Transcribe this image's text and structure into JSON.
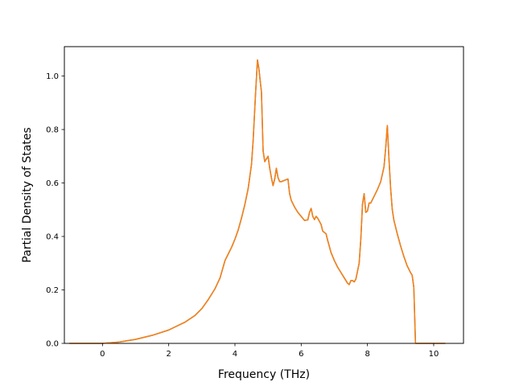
{
  "chart_data": {
    "type": "line",
    "title": "",
    "xlabel": "Frequency (THz)",
    "ylabel": "Partial Density of States",
    "xlim": [
      -1.15,
      10.9
    ],
    "ylim": [
      0.0,
      1.11
    ],
    "xticks": [
      0,
      2,
      4,
      6,
      8,
      10
    ],
    "xtick_labels": [
      "0",
      "2",
      "4",
      "6",
      "8",
      "10"
    ],
    "yticks": [
      0.0,
      0.2,
      0.4,
      0.6,
      0.8,
      1.0
    ],
    "ytick_labels": [
      "0.0",
      "0.2",
      "0.4",
      "0.6",
      "0.8",
      "1.0"
    ],
    "grid": false,
    "legend": "none",
    "colors": {
      "line_under": "#1f77b4",
      "line_over": "#ff7f0e",
      "axes": "#000000"
    },
    "series": [
      {
        "x": [
          -1.0,
          -0.5,
          0.0,
          0.5,
          1.0,
          1.5,
          2.0,
          2.5,
          2.8,
          3.0,
          3.2,
          3.4,
          3.55,
          3.7,
          3.8,
          3.9,
          4.0,
          4.1,
          4.2,
          4.3,
          4.4,
          4.5,
          4.55,
          4.62,
          4.68,
          4.72,
          4.8,
          4.85,
          4.9,
          5.0,
          5.05,
          5.1,
          5.15,
          5.2,
          5.25,
          5.3,
          5.35,
          5.4,
          5.5,
          5.6,
          5.65,
          5.7,
          5.8,
          5.9,
          6.0,
          6.1,
          6.2,
          6.25,
          6.3,
          6.35,
          6.4,
          6.45,
          6.5,
          6.6,
          6.65,
          6.7,
          6.75,
          6.8,
          6.9,
          7.0,
          7.1,
          7.2,
          7.3,
          7.4,
          7.45,
          7.5,
          7.55,
          7.6,
          7.65,
          7.7,
          7.75,
          7.8,
          7.85,
          7.9,
          7.95,
          8.0,
          8.05,
          8.1,
          8.2,
          8.3,
          8.4,
          8.5,
          8.55,
          8.6,
          8.65,
          8.7,
          8.75,
          8.8,
          8.9,
          9.0,
          9.1,
          9.2,
          9.3,
          9.35,
          9.4,
          9.45,
          9.5,
          10.0,
          10.35
        ],
        "y": [
          0.0,
          0.0,
          0.0,
          0.005,
          0.015,
          0.03,
          0.05,
          0.08,
          0.105,
          0.13,
          0.165,
          0.205,
          0.245,
          0.31,
          0.335,
          0.36,
          0.39,
          0.425,
          0.47,
          0.52,
          0.58,
          0.67,
          0.76,
          0.93,
          1.06,
          1.03,
          0.94,
          0.72,
          0.68,
          0.7,
          0.655,
          0.62,
          0.59,
          0.615,
          0.655,
          0.62,
          0.605,
          0.605,
          0.61,
          0.615,
          0.56,
          0.535,
          0.51,
          0.49,
          0.475,
          0.46,
          0.462,
          0.49,
          0.505,
          0.475,
          0.463,
          0.475,
          0.468,
          0.445,
          0.42,
          0.415,
          0.41,
          0.385,
          0.34,
          0.31,
          0.285,
          0.265,
          0.245,
          0.225,
          0.22,
          0.235,
          0.235,
          0.23,
          0.24,
          0.27,
          0.3,
          0.39,
          0.52,
          0.56,
          0.49,
          0.495,
          0.525,
          0.525,
          0.55,
          0.575,
          0.605,
          0.66,
          0.73,
          0.815,
          0.69,
          0.58,
          0.5,
          0.46,
          0.41,
          0.365,
          0.325,
          0.29,
          0.265,
          0.255,
          0.21,
          0.0,
          0.0,
          0.0,
          0.0
        ]
      }
    ]
  }
}
